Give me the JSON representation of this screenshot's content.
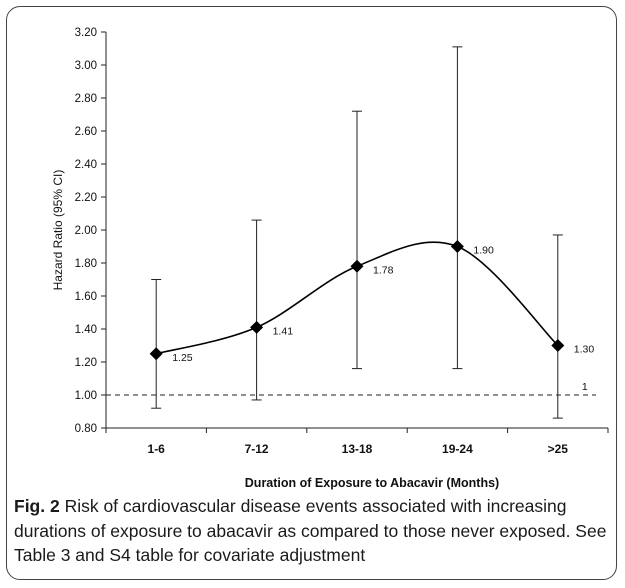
{
  "chart_data": {
    "type": "line",
    "title": "",
    "xlabel": "Duration of Exposure to Abacavir (Months)",
    "ylabel": "Hazard Ratio  (95% CI)",
    "ylim": [
      0.8,
      3.2
    ],
    "ytick_labels": [
      "0.80",
      "1.00",
      "1.20",
      "1.40",
      "1.60",
      "1.80",
      "2.00",
      "2.20",
      "2.40",
      "2.60",
      "2.80",
      "3.00",
      "3.20"
    ],
    "categories": [
      "1-6",
      "7-12",
      "13-18",
      "19-24",
      ">25"
    ],
    "series": [
      {
        "values": [
          1.25,
          1.41,
          1.78,
          1.9,
          1.3
        ],
        "value_labels": [
          "1.25",
          "1.41",
          "1.78",
          "1.90",
          "1.30"
        ],
        "ci_lower": [
          0.92,
          0.97,
          1.16,
          1.16,
          0.86
        ],
        "ci_upper": [
          1.7,
          2.06,
          2.72,
          3.11,
          1.97
        ]
      }
    ],
    "reference_line": {
      "value": 1.0,
      "label": "1",
      "style": "dashed"
    },
    "grid": false,
    "legend": "none"
  },
  "caption": {
    "figure_label": "Fig. 2",
    "text": " Risk of cardiovascular disease events associated with increasing durations of exposure to abacavir as compared to those never exposed. See Table 3 and S4 table for covariate adjustment"
  }
}
